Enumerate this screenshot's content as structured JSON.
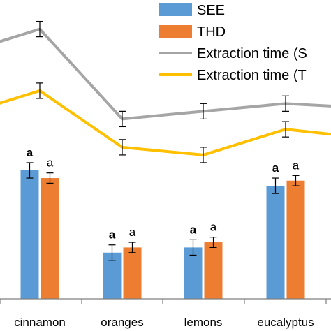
{
  "chart_data": {
    "type": "bar",
    "categories": [
      "cinnamon",
      "oranges",
      "lemons",
      "eucalyptus"
    ],
    "series": [
      {
        "name": "SEE",
        "kind": "bar",
        "color": "#5B9BD5",
        "values": [
          50,
          18,
          20,
          44
        ],
        "errors": [
          3,
          3,
          3,
          3
        ],
        "labels": [
          "a",
          "a",
          "a",
          "a"
        ]
      },
      {
        "name": "THD",
        "kind": "bar",
        "color": "#ED7D31",
        "values": [
          47,
          20,
          22,
          46
        ],
        "errors": [
          2,
          2,
          2,
          2
        ],
        "labels": [
          "a",
          "a",
          "a",
          "a"
        ]
      },
      {
        "name": "Extraction time (S",
        "kind": "line",
        "color": "#A5A5A5",
        "values": [
          105,
          70,
          73,
          76
        ],
        "errors": [
          3,
          3,
          3,
          3
        ],
        "edge_left": 100,
        "edge_right": 75
      },
      {
        "name": "Extraction time (T",
        "kind": "line",
        "color": "#FFC000",
        "values": [
          81,
          59,
          56,
          66
        ],
        "errors": [
          3,
          3,
          3,
          3
        ],
        "edge_left": 76,
        "edge_right": 64
      }
    ],
    "ylim": [
      0,
      130
    ],
    "grid": false,
    "legend": "top-right"
  },
  "colors": {
    "axis": "#7F7F7F",
    "text": "#000000",
    "error": "#000000"
  }
}
